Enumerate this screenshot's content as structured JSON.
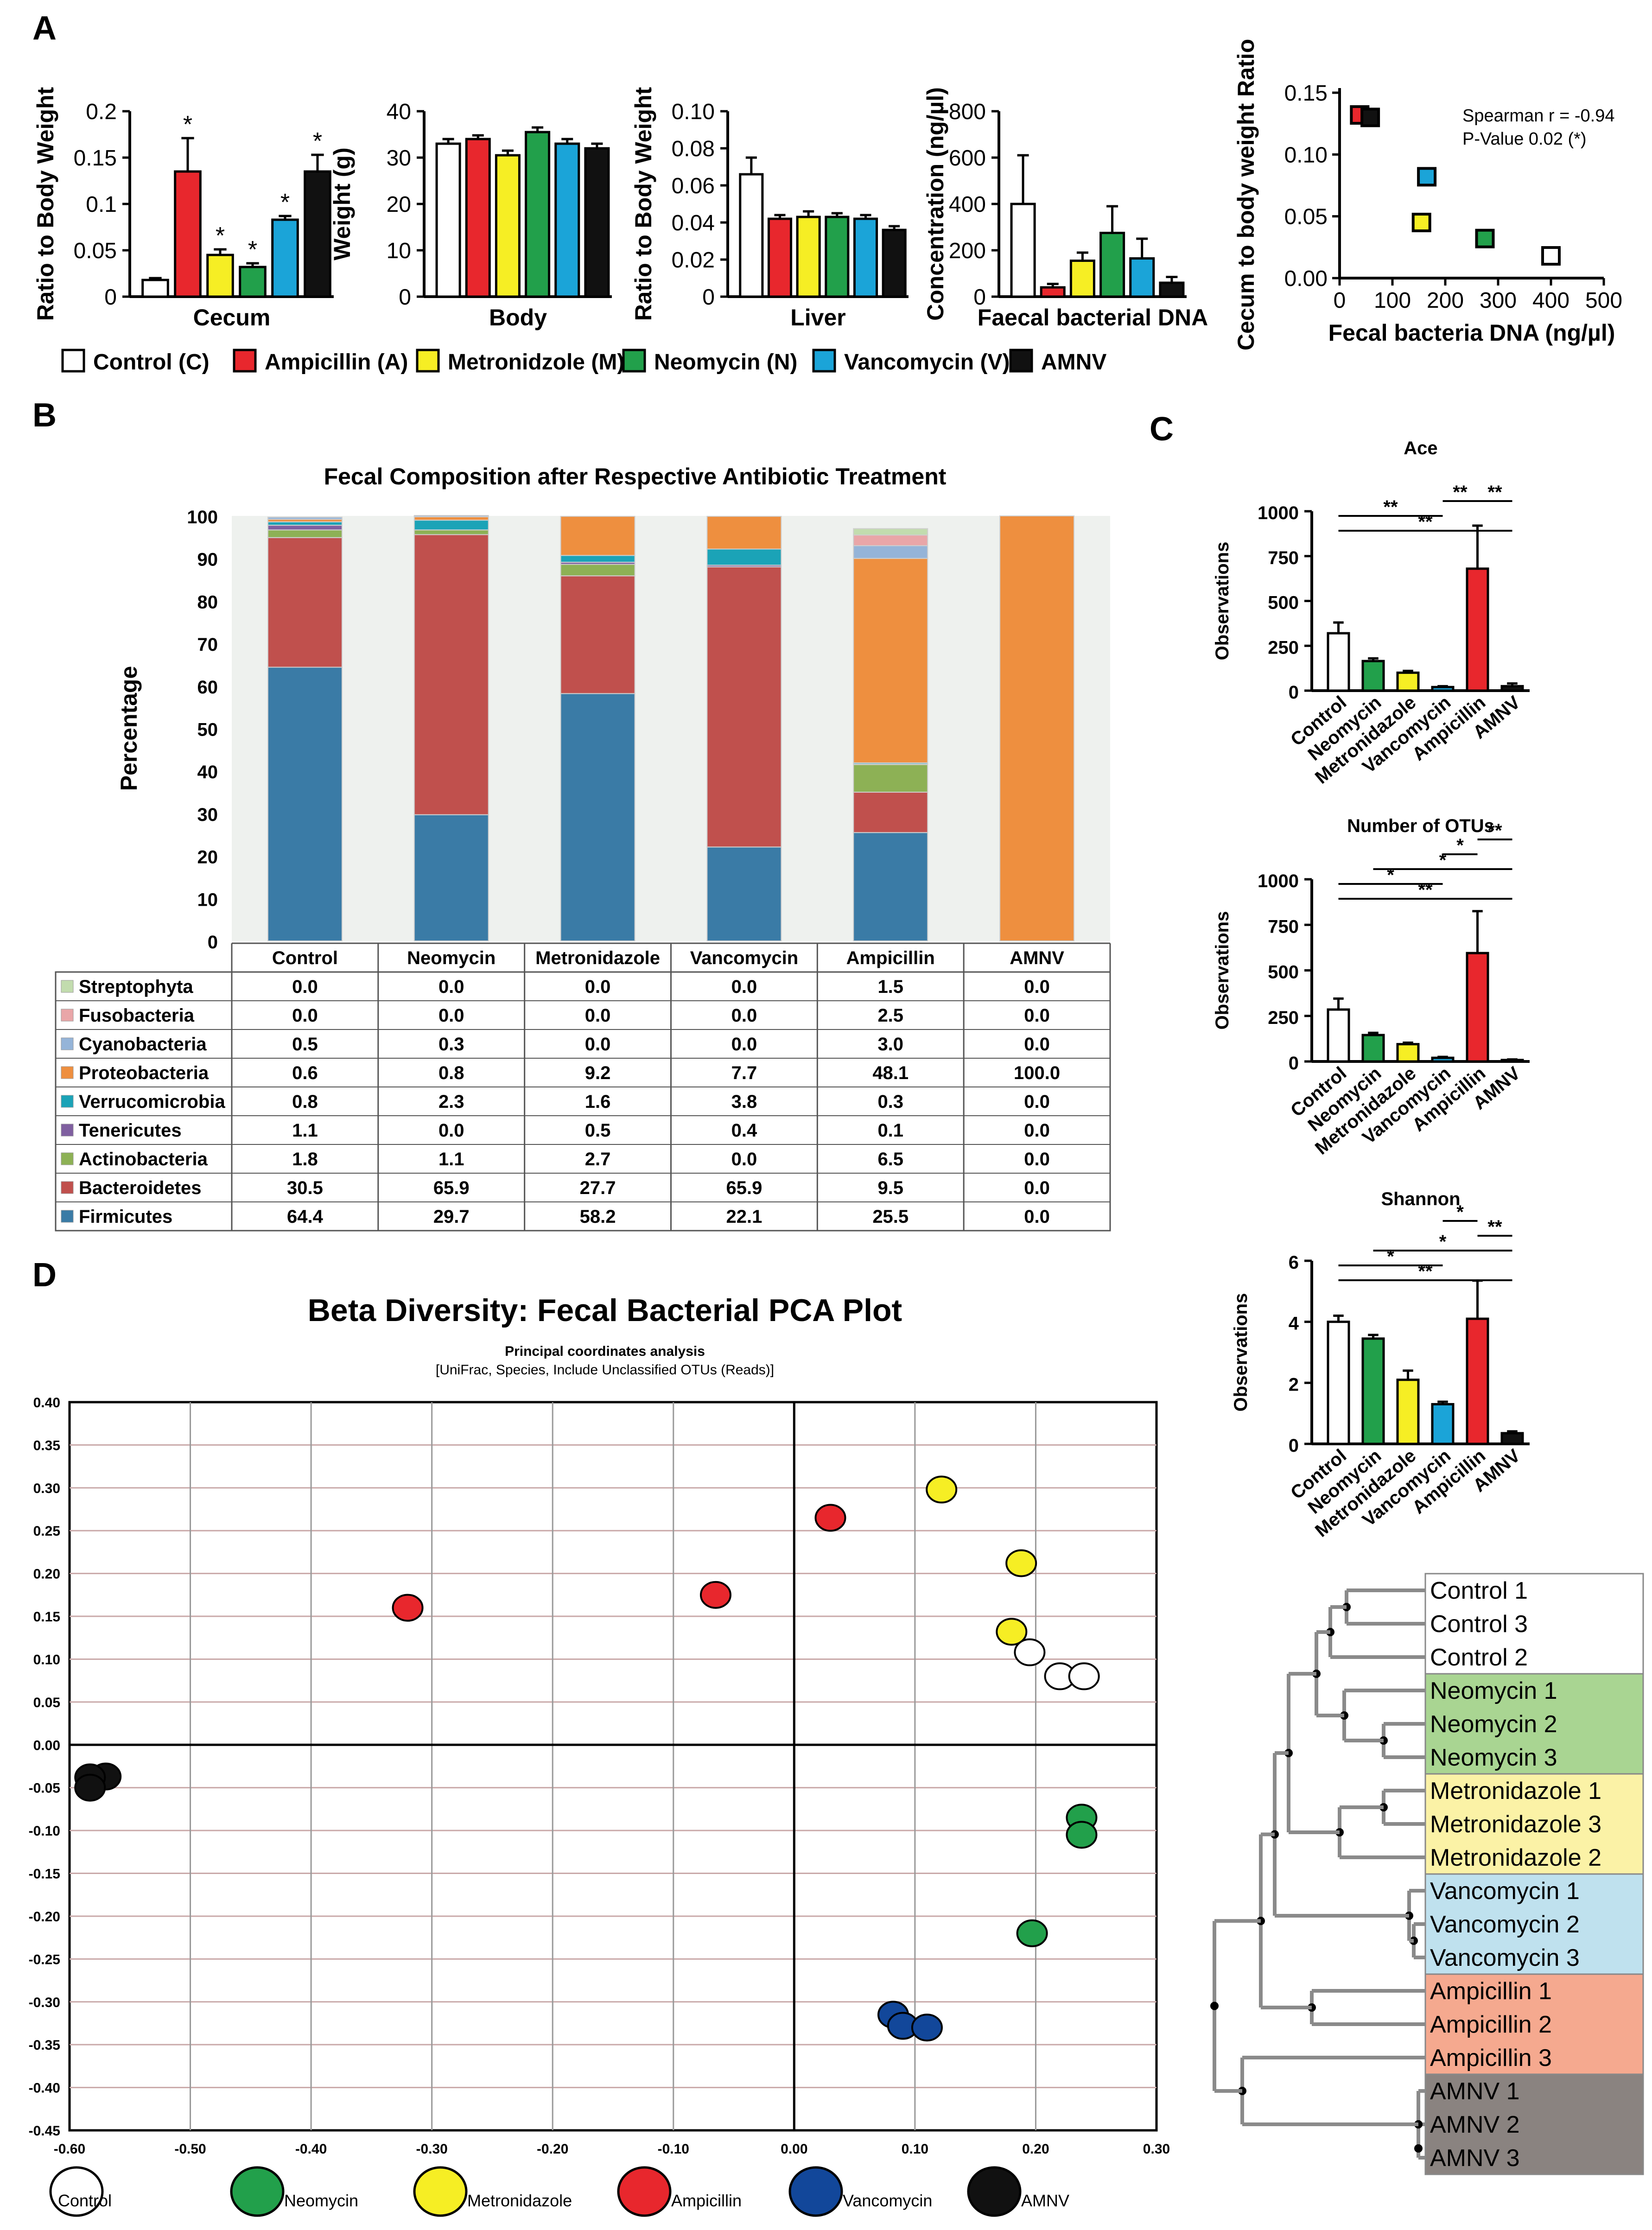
{
  "panel_labels": {
    "A": "A",
    "B": "B",
    "C": "C",
    "D": "D"
  },
  "colors": {
    "Control": "#ffffff",
    "Ampicillin": "#e8272d",
    "Metronidazole": "#f6ee24",
    "Neomycin": "#22a04b",
    "Vancomycin": "#1ba4d8",
    "AMNV": "#111111",
    "Vancomycin_pca": "#12479a",
    "Firmicutes": "#3a7ba6",
    "Bacteroidetes": "#c0504d",
    "Actinobacteria": "#8db155",
    "Tenericutes": "#7f5fa0",
    "Verrucomicrobia": "#1ba3b7",
    "Proteobacteria": "#ee8f3f",
    "Cyanobacteria": "#95b4d8",
    "Fusobacteria": "#e9a6a8",
    "Streptophyta": "#c2dcae"
  },
  "legend_A": [
    {
      "label": "Control (C)",
      "key": "Control"
    },
    {
      "label": "Ampicillin (A)",
      "key": "Ampicillin"
    },
    {
      "label": "Metronidzole (M)",
      "key": "Metronidazole"
    },
    {
      "label": "Neomycin (N)",
      "key": "Neomycin"
    },
    {
      "label": "Vancomycin (V)",
      "key": "Vancomycin"
    },
    {
      "label": "AMNV",
      "key": "AMNV"
    }
  ],
  "chart_data": [
    {
      "id": "A_cecum",
      "type": "bar",
      "categories": [
        "C",
        "A",
        "M",
        "N",
        "V",
        "AMNV"
      ],
      "color_keys": [
        "Control",
        "Ampicillin",
        "Metronidazole",
        "Neomycin",
        "Vancomycin",
        "AMNV"
      ],
      "values": [
        0.018,
        0.135,
        0.045,
        0.032,
        0.083,
        0.135
      ],
      "errors": [
        0.002,
        0.036,
        0.006,
        0.004,
        0.004,
        0.018
      ],
      "stars": [
        "",
        "*",
        "*",
        "*",
        "*",
        "*"
      ],
      "ylim": [
        0,
        0.2
      ],
      "yticks": [
        0,
        0.05,
        0.1,
        0.15,
        0.2
      ],
      "ytick_labels": [
        "0",
        "0.05",
        "0.1",
        "0.15",
        "0.2"
      ],
      "ylabel": "Ratio to Body Weight",
      "xlabel": "Cecum"
    },
    {
      "id": "A_body",
      "type": "bar",
      "categories": [
        "C",
        "A",
        "M",
        "N",
        "V",
        "AMNV"
      ],
      "color_keys": [
        "Control",
        "Ampicillin",
        "Metronidazole",
        "Neomycin",
        "Vancomycin",
        "AMNV"
      ],
      "values": [
        33,
        34,
        30.5,
        35.5,
        33,
        32
      ],
      "errors": [
        1,
        0.8,
        1,
        1,
        1,
        1
      ],
      "ylim": [
        0,
        40
      ],
      "yticks": [
        0,
        10,
        20,
        30,
        40
      ],
      "ytick_labels": [
        "0",
        "10",
        "20",
        "30",
        "40"
      ],
      "ylabel": "Weight (g)",
      "xlabel": "Body"
    },
    {
      "id": "A_liver",
      "type": "bar",
      "categories": [
        "C",
        "A",
        "M",
        "N",
        "V",
        "AMNV"
      ],
      "color_keys": [
        "Control",
        "Ampicillin",
        "Metronidazole",
        "Neomycin",
        "Vancomycin",
        "AMNV"
      ],
      "values": [
        0.066,
        0.042,
        0.043,
        0.043,
        0.042,
        0.036
      ],
      "errors": [
        0.009,
        0.002,
        0.003,
        0.002,
        0.002,
        0.002
      ],
      "ylim": [
        0,
        0.1
      ],
      "yticks": [
        0,
        0.02,
        0.04,
        0.06,
        0.08,
        0.1
      ],
      "ytick_labels": [
        "0",
        "0.02",
        "0.04",
        "0.06",
        "0.08",
        "0.10"
      ],
      "ylabel": "Ratio to Body Weight",
      "xlabel": "Liver"
    },
    {
      "id": "A_faecal",
      "type": "bar",
      "categories": [
        "C",
        "A",
        "M",
        "N",
        "V",
        "AMNV"
      ],
      "color_keys": [
        "Control",
        "Ampicillin",
        "Metronidazole",
        "Neomycin",
        "Vancomycin",
        "AMNV"
      ],
      "values": [
        400,
        40,
        155,
        275,
        165,
        60
      ],
      "errors": [
        210,
        15,
        35,
        115,
        85,
        25
      ],
      "ylim": [
        0,
        800
      ],
      "yticks": [
        0,
        200,
        400,
        600,
        800
      ],
      "ytick_labels": [
        "0",
        "200",
        "400",
        "600",
        "800"
      ],
      "ylabel": "Concentration (ng/µl)",
      "xlabel": "Faecal bacterial DNA"
    },
    {
      "id": "A_scatter",
      "type": "scatter",
      "points": [
        {
          "key": "Ampicillin",
          "x": 38,
          "y": 0.132
        },
        {
          "key": "AMNV",
          "x": 58,
          "y": 0.13
        },
        {
          "key": "Vancomycin",
          "x": 165,
          "y": 0.082
        },
        {
          "key": "Metronidazole",
          "x": 155,
          "y": 0.045
        },
        {
          "key": "Neomycin",
          "x": 275,
          "y": 0.032
        },
        {
          "key": "Control",
          "x": 400,
          "y": 0.018
        }
      ],
      "xlim": [
        0,
        500
      ],
      "ylim": [
        0,
        0.15
      ],
      "xticks": [
        0,
        100,
        200,
        300,
        400,
        500
      ],
      "xtick_labels": [
        "0",
        "100",
        "200",
        "300",
        "400",
        "500"
      ],
      "yticks": [
        0,
        0.05,
        0.1,
        0.15
      ],
      "ytick_labels": [
        "0.00",
        "0.05",
        "0.10",
        "0.15"
      ],
      "xlabel": "Fecal bacteria DNA (ng/µl)",
      "ylabel": "Cecum to body weight Ratio",
      "annotation": [
        "Spearman r = -0.94",
        "P-Value 0.02 (*)"
      ]
    },
    {
      "id": "B_stacked",
      "type": "bar",
      "title": "Fecal Composition after Respective Antibiotic Treatment",
      "ylabel": "Percentage",
      "ylim": [
        0,
        100
      ],
      "yticks": [
        0,
        10,
        20,
        30,
        40,
        50,
        60,
        70,
        80,
        90,
        100
      ],
      "ytick_labels": [
        "0",
        "10",
        "20",
        "30",
        "40",
        "50",
        "60",
        "70",
        "80",
        "90",
        "100"
      ],
      "categories": [
        "Control",
        "Neomycin",
        "Metronidazole",
        "Vancomycin",
        "Ampicillin",
        "AMNV"
      ],
      "table_header": [
        "Control",
        "Neomycin",
        "Metronidazole",
        "Vancomycin",
        "Ampicillin",
        "AMNV"
      ],
      "series": [
        {
          "name": "Streptophyta",
          "key": "Streptophyta",
          "values": [
            0.0,
            0.0,
            0.0,
            0.0,
            1.5,
            0.0
          ],
          "labels": [
            "0.0",
            "0.0",
            "0.0",
            "0.0",
            "1.5",
            "0.0"
          ]
        },
        {
          "name": "Fusobacteria",
          "key": "Fusobacteria",
          "values": [
            0.0,
            0.0,
            0.0,
            0.0,
            2.5,
            0.0
          ],
          "labels": [
            "0.0",
            "0.0",
            "0.0",
            "0.0",
            "2.5",
            "0.0"
          ]
        },
        {
          "name": "Cyanobacteria",
          "key": "Cyanobacteria",
          "values": [
            0.5,
            0.3,
            0.0,
            0.0,
            3.0,
            0.0
          ],
          "labels": [
            "0.5",
            "0.3",
            "0.0",
            "0.0",
            "3.0",
            "0.0"
          ]
        },
        {
          "name": "Proteobacteria",
          "key": "Proteobacteria",
          "values": [
            0.6,
            0.8,
            9.2,
            7.7,
            48.1,
            100.0
          ],
          "labels": [
            "0.6",
            "0.8",
            "9.2",
            "7.7",
            "48.1",
            "100.0"
          ]
        },
        {
          "name": "Verrucomicrobia",
          "key": "Verrucomicrobia",
          "values": [
            0.8,
            2.3,
            1.6,
            3.8,
            0.3,
            0.0
          ],
          "labels": [
            "0.8",
            "2.3",
            "1.6",
            "3.8",
            "0.3",
            "0.0"
          ]
        },
        {
          "name": "Tenericutes",
          "key": "Tenericutes",
          "values": [
            1.1,
            0.0,
            0.5,
            0.4,
            0.1,
            0.0
          ],
          "labels": [
            "1.1",
            "0.0",
            "0.5",
            "0.4",
            "0.1",
            "0.0"
          ]
        },
        {
          "name": "Actinobacteria",
          "key": "Actinobacteria",
          "values": [
            1.8,
            1.1,
            2.7,
            0.0,
            6.5,
            0.0
          ],
          "labels": [
            "1.8",
            "1.1",
            "2.7",
            "0.0",
            "6.5",
            "0.0"
          ]
        },
        {
          "name": "Bacteroidetes",
          "key": "Bacteroidetes",
          "values": [
            30.5,
            65.9,
            27.7,
            65.9,
            9.5,
            0.0
          ],
          "labels": [
            "30.5",
            "65.9",
            "27.7",
            "65.9",
            "9.5",
            "0.0"
          ]
        },
        {
          "name": "Firmicutes",
          "key": "Firmicutes",
          "values": [
            64.4,
            29.7,
            58.2,
            22.1,
            25.5,
            0.0
          ],
          "labels": [
            "64.4",
            "29.7",
            "58.2",
            "22.1",
            "25.5",
            "0.0"
          ]
        }
      ]
    },
    {
      "id": "C_ace",
      "type": "bar",
      "title": "Ace",
      "ylabel": "Observations",
      "categories": [
        "Control",
        "Neomycin",
        "Metronidazole",
        "Vancomycin",
        "Ampicillin",
        "AMNV"
      ],
      "color_keys": [
        "Control",
        "Neomycin",
        "Metronidazole",
        "Vancomycin",
        "Ampicillin",
        "AMNV"
      ],
      "values": [
        320,
        165,
        100,
        20,
        680,
        25
      ],
      "errors": [
        60,
        15,
        10,
        5,
        240,
        15
      ],
      "ylim": [
        0,
        1000
      ],
      "yticks": [
        0,
        250,
        500,
        750,
        1000
      ],
      "ytick_labels": [
        "0",
        "250",
        "500",
        "750",
        "1000"
      ],
      "brackets": [
        {
          "from": 0,
          "to": 3,
          "label": "**",
          "level": 0
        },
        {
          "from": 3,
          "to": 4,
          "label": "**",
          "level": 1
        },
        {
          "from": 4,
          "to": 5,
          "label": "**",
          "level": 1
        },
        {
          "from": 0,
          "to": 5,
          "label": "**",
          "level": -1
        }
      ]
    },
    {
      "id": "C_otus",
      "type": "bar",
      "title": "Number of OTUs",
      "ylabel": "Observations",
      "categories": [
        "Control",
        "Neomycin",
        "Metronidazole",
        "Vancomycin",
        "Ampicillin",
        "AMNV"
      ],
      "color_keys": [
        "Control",
        "Neomycin",
        "Metronidazole",
        "Vancomycin",
        "Ampicillin",
        "AMNV"
      ],
      "values": [
        285,
        145,
        95,
        20,
        595,
        8
      ],
      "errors": [
        60,
        12,
        8,
        5,
        230,
        3
      ],
      "ylim": [
        0,
        1000
      ],
      "yticks": [
        0,
        250,
        500,
        750,
        1000
      ],
      "ytick_labels": [
        "0",
        "250",
        "500",
        "750",
        "1000"
      ],
      "brackets": [
        {
          "from": 4,
          "to": 5,
          "label": "**",
          "level": 3
        },
        {
          "from": 3,
          "to": 4,
          "label": "*",
          "level": 2
        },
        {
          "from": 1,
          "to": 5,
          "label": "*",
          "level": 1
        },
        {
          "from": 0,
          "to": 3,
          "label": "*",
          "level": 0
        },
        {
          "from": 0,
          "to": 5,
          "label": "**",
          "level": -1
        }
      ]
    },
    {
      "id": "C_shannon",
      "type": "bar",
      "title": "Shannon",
      "ylabel": "Observations",
      "categories": [
        "Control",
        "Neomycin",
        "Metronidazole",
        "Vancomycin",
        "Ampicillin",
        "AMNV"
      ],
      "color_keys": [
        "Control",
        "Neomycin",
        "Metronidazole",
        "Vancomycin",
        "Ampicillin",
        "AMNV"
      ],
      "values": [
        4.0,
        3.45,
        2.1,
        1.3,
        4.1,
        0.35
      ],
      "errors": [
        0.2,
        0.12,
        0.3,
        0.08,
        1.25,
        0.06
      ],
      "ylim": [
        0,
        6
      ],
      "yticks": [
        0,
        2,
        4,
        6
      ],
      "ytick_labels": [
        "0",
        "2",
        "4",
        "6"
      ],
      "brackets": [
        {
          "from": 3,
          "to": 4,
          "label": "*",
          "level": 3
        },
        {
          "from": 4,
          "to": 5,
          "label": "**",
          "level": 2
        },
        {
          "from": 1,
          "to": 5,
          "label": "*",
          "level": 1
        },
        {
          "from": 0,
          "to": 3,
          "label": "*",
          "level": 0
        },
        {
          "from": 0,
          "to": 5,
          "label": "**",
          "level": -1
        }
      ]
    },
    {
      "id": "D_pca",
      "type": "scatter",
      "title": "Beta Diversity: Fecal Bacterial PCA Plot",
      "subtitle": "Principal coordinates analysis",
      "subtitle2": "[UniFrac, Species, Include Unclassified OTUs (Reads)]",
      "xlim": [
        -0.6,
        0.3
      ],
      "ylim": [
        -0.45,
        0.4
      ],
      "xticks": [
        -0.6,
        -0.5,
        -0.4,
        -0.3,
        -0.2,
        -0.1,
        0,
        0.1,
        0.2,
        0.3
      ],
      "xtick_labels": [
        "-0.60",
        "-0.50",
        "-0.40",
        "-0.30",
        "-0.20",
        "-0.10",
        "0.00",
        "0.10",
        "0.20",
        "0.30"
      ],
      "yticks": [
        -0.45,
        -0.4,
        -0.35,
        -0.3,
        -0.25,
        -0.2,
        -0.15,
        -0.1,
        -0.05,
        0,
        0.05,
        0.1,
        0.15,
        0.2,
        0.25,
        0.3,
        0.35,
        0.4
      ],
      "ytick_labels": [
        "-0.45",
        "-0.40",
        "-0.35",
        "-0.30",
        "-0.25",
        "-0.20",
        "-0.15",
        "-0.10",
        "-0.05",
        "0.00",
        "0.05",
        "0.10",
        "0.15",
        "0.20",
        "0.25",
        "0.30",
        "0.35",
        "0.40"
      ],
      "points": [
        {
          "key": "Ampicillin",
          "x": -0.32,
          "y": 0.16
        },
        {
          "key": "Ampicillin",
          "x": -0.065,
          "y": 0.175
        },
        {
          "key": "Ampicillin",
          "x": 0.03,
          "y": 0.265
        },
        {
          "key": "Metronidazole",
          "x": 0.122,
          "y": 0.298
        },
        {
          "key": "Metronidazole",
          "x": 0.188,
          "y": 0.212
        },
        {
          "key": "Metronidazole",
          "x": 0.18,
          "y": 0.132
        },
        {
          "key": "Control",
          "x": 0.195,
          "y": 0.108
        },
        {
          "key": "Control",
          "x": 0.22,
          "y": 0.08
        },
        {
          "key": "Control",
          "x": 0.24,
          "y": 0.08
        },
        {
          "key": "Neomycin",
          "x": 0.238,
          "y": -0.085
        },
        {
          "key": "Neomycin",
          "x": 0.238,
          "y": -0.105
        },
        {
          "key": "Neomycin",
          "x": 0.197,
          "y": -0.22
        },
        {
          "key": "Vancomycin_pca",
          "x": 0.082,
          "y": -0.315
        },
        {
          "key": "Vancomycin_pca",
          "x": 0.09,
          "y": -0.328
        },
        {
          "key": "Vancomycin_pca",
          "x": 0.11,
          "y": -0.33
        },
        {
          "key": "AMNV",
          "x": -0.57,
          "y": -0.037
        },
        {
          "key": "AMNV",
          "x": -0.583,
          "y": -0.038
        },
        {
          "key": "AMNV",
          "x": -0.583,
          "y": -0.05
        }
      ],
      "legend": [
        {
          "label": "Control",
          "key": "Control"
        },
        {
          "label": "Neomycin",
          "key": "Neomycin"
        },
        {
          "label": "Metronidazole",
          "key": "Metronidazole"
        },
        {
          "label": "Ampicillin",
          "key": "Ampicillin"
        },
        {
          "label": "Vancomycin",
          "key": "Vancomycin_pca"
        },
        {
          "label": "AMNV",
          "key": "AMNV"
        }
      ]
    },
    {
      "id": "D_dendrogram",
      "type": "table",
      "groups": [
        {
          "color": "#ffffff",
          "leaves": [
            "Control 1",
            "Control 3",
            "Control 2"
          ]
        },
        {
          "color": "#a9d592",
          "leaves": [
            "Neomycin 1",
            "Neomycin 2",
            "Neomycin 3"
          ]
        },
        {
          "color": "#fbf2a6",
          "leaves": [
            "Metronidazole 1",
            "Metronidazole 3",
            "Metronidazole 2"
          ]
        },
        {
          "color": "#bfe1ee",
          "leaves": [
            "Vancomycin 1",
            "Vancomycin 2",
            "Vancomycin 3"
          ]
        },
        {
          "color": "#f5a98f",
          "leaves": [
            "Ampicillin 1",
            "Ampicillin 2",
            "Ampicillin 3"
          ]
        },
        {
          "color": "#8a8380",
          "leaves": [
            "AMNV 1",
            "AMNV 2",
            "AMNV 3"
          ]
        }
      ]
    }
  ]
}
